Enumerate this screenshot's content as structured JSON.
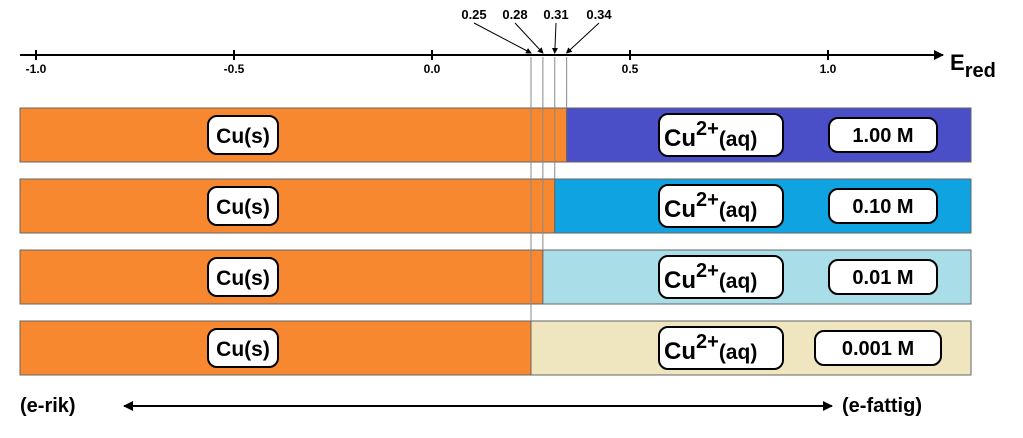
{
  "axis": {
    "ticks": [
      {
        "value": -1.0,
        "label": "-1.0"
      },
      {
        "value": -0.5,
        "label": "-0.5"
      },
      {
        "value": 0.0,
        "label": "0.0"
      },
      {
        "value": 0.5,
        "label": "0.5"
      },
      {
        "value": 1.0,
        "label": "1.0"
      }
    ],
    "label_main": "E",
    "label_sub": "red",
    "equilibrium_values": [
      {
        "value": 0.25,
        "label": "0.25"
      },
      {
        "value": 0.28,
        "label": "0.28"
      },
      {
        "value": 0.31,
        "label": "0.31"
      },
      {
        "value": 0.34,
        "label": "0.34"
      }
    ]
  },
  "rows": [
    {
      "solid": "Cu(s)",
      "ion": "Cu",
      "ion_charge": "2+",
      "ion_state": "(aq)",
      "concentration": "1.00 M",
      "equilibrium": 0.34,
      "color": "#4a4fc8"
    },
    {
      "solid": "Cu(s)",
      "ion": "Cu",
      "ion_charge": "2+",
      "ion_state": "(aq)",
      "concentration": "0.10 M",
      "equilibrium": 0.31,
      "color": "#0fa3e2"
    },
    {
      "solid": "Cu(s)",
      "ion": "Cu",
      "ion_charge": "2+",
      "ion_state": "(aq)",
      "concentration": "0.01 M",
      "equilibrium": 0.28,
      "color": "#a9dde8"
    },
    {
      "solid": "Cu(s)",
      "ion": "Cu",
      "ion_charge": "2+",
      "ion_state": "(aq)",
      "concentration": "0.001 M",
      "equilibrium": 0.25,
      "color": "#efe5bf"
    }
  ],
  "solid_color": "#f7882f",
  "bottom": {
    "left_label": "(e-rik)",
    "right_label": "(e-fattig)"
  }
}
